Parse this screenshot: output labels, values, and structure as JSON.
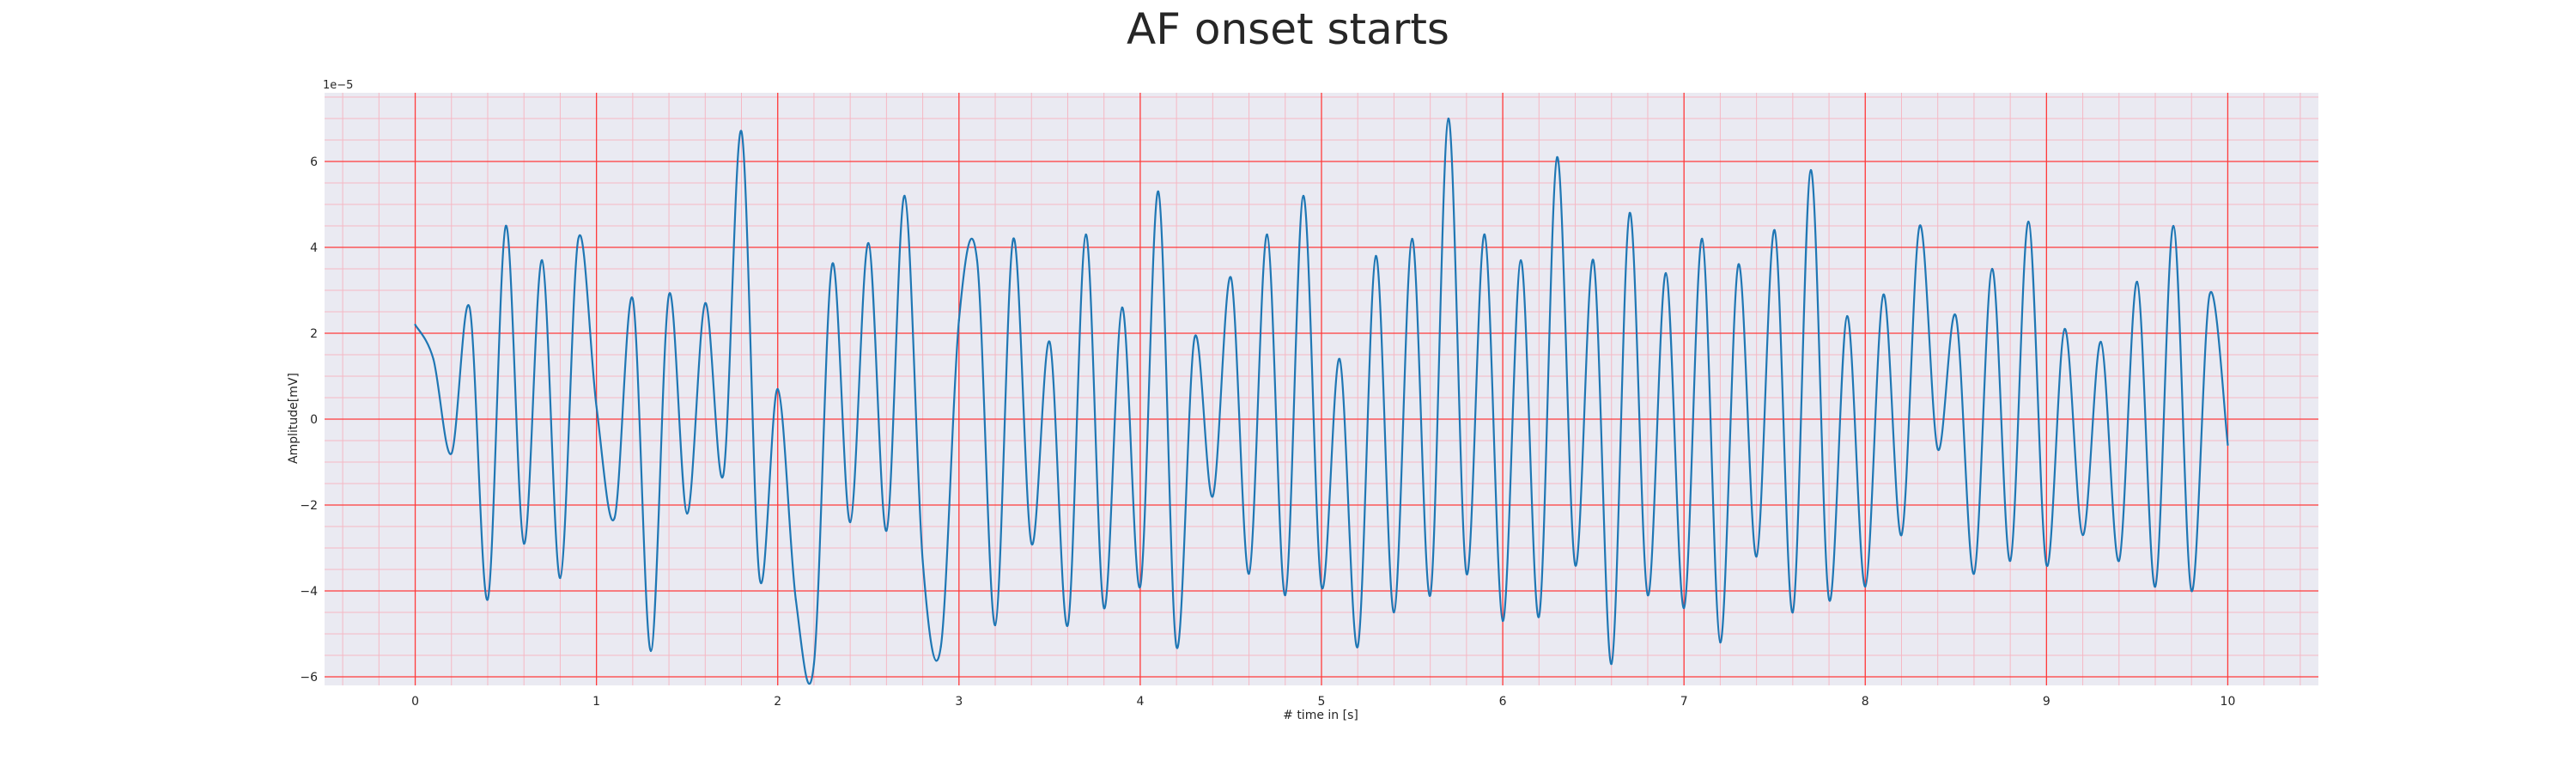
{
  "chart_data": {
    "type": "line",
    "title": "AF onset starts",
    "xlabel": "# time in [s]",
    "ylabel": "Amplitude[mV]",
    "offset_label": "1e−5",
    "xlim": [
      -0.5,
      10.5
    ],
    "ylim": [
      -6.2,
      7.6
    ],
    "x_ticks": [
      0,
      1,
      2,
      3,
      4,
      5,
      6,
      7,
      8,
      9,
      10
    ],
    "x_tick_labels": [
      "0",
      "1",
      "2",
      "3",
      "4",
      "5",
      "6",
      "7",
      "8",
      "9",
      "10"
    ],
    "y_ticks": [
      -6,
      -4,
      -2,
      0,
      2,
      4,
      6
    ],
    "y_tick_labels": [
      "−6",
      "−4",
      "−2",
      "0",
      "2",
      "4",
      "6"
    ],
    "grid": true,
    "colors": {
      "line": "#1f77b4",
      "plot_background": "#eaeaf2",
      "major_grid": "#ff3b3b",
      "minor_grid": "#f5b8c4"
    },
    "series": [
      {
        "x": [
          0,
          0.1,
          0.2,
          0.3,
          0.4,
          0.5,
          0.6,
          0.7,
          0.8,
          0.9,
          1,
          1.1,
          1.2,
          1.3,
          1.4,
          1.5,
          1.6,
          1.7,
          1.8,
          1.9,
          2,
          2.1,
          2.2,
          2.3,
          2.4,
          2.5,
          2.6,
          2.7,
          2.8,
          2.9,
          3,
          3.1,
          3.2,
          3.3,
          3.4,
          3.5,
          3.6,
          3.7,
          3.8,
          3.9,
          4,
          4.1,
          4.2,
          4.3,
          4.4,
          4.5,
          4.6,
          4.7,
          4.8,
          4.9,
          5,
          5.1,
          5.2,
          5.3,
          5.4,
          5.5,
          5.6,
          5.7,
          5.8,
          5.9,
          6,
          6.1,
          6.2,
          6.3,
          6.4,
          6.5,
          6.6,
          6.7,
          6.8,
          6.9,
          7,
          7.1,
          7.2,
          7.3,
          7.4,
          7.5,
          7.6,
          7.7,
          7.8,
          7.9,
          8,
          8.1,
          8.2,
          8.3,
          8.4,
          8.5,
          8.6,
          8.7,
          8.8,
          8.9,
          9,
          9.1,
          9.2,
          9.3,
          9.4,
          9.5,
          9.6,
          9.7,
          9.8,
          9.9,
          10
        ],
        "y": [
          2.2,
          1.4,
          -0.8,
          2.6,
          -4.2,
          4.5,
          -2.9,
          3.7,
          -3.7,
          4.2,
          0.3,
          -2.3,
          2.8,
          -5.4,
          2.9,
          -2.2,
          2.7,
          -1.3,
          6.7,
          -3.7,
          0.7,
          -4.2,
          -5.7,
          3.6,
          -2.4,
          4.1,
          -2.6,
          5.2,
          -3.3,
          -5.3,
          2.3,
          3.7,
          -4.8,
          4.2,
          -2.9,
          1.8,
          -4.8,
          4.3,
          -4.4,
          2.6,
          -3.9,
          5.3,
          -5.3,
          1.9,
          -1.8,
          3.3,
          -3.6,
          4.3,
          -4.1,
          5.2,
          -3.9,
          1.4,
          -5.3,
          3.8,
          -4.5,
          4.2,
          -4.1,
          7.0,
          -3.6,
          4.3,
          -4.7,
          3.7,
          -4.6,
          6.1,
          -3.4,
          3.7,
          -5.7,
          4.8,
          -4.1,
          3.4,
          -4.4,
          4.2,
          -5.2,
          3.6,
          -3.2,
          4.4,
          -4.5,
          5.8,
          -4.2,
          2.4,
          -3.9,
          2.9,
          -2.7,
          4.5,
          -0.7,
          2.4,
          -3.6,
          3.5,
          -3.3,
          4.6,
          -3.4,
          2.1,
          -2.7,
          1.8,
          -3.3,
          3.2,
          -3.9,
          4.5,
          -4.0,
          2.9,
          -0.6
        ]
      }
    ]
  }
}
